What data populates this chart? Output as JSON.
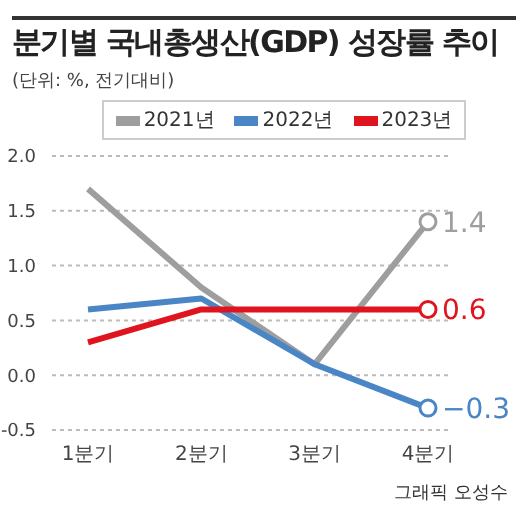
{
  "chart_data": {
    "type": "line",
    "title": "분기별 국내총생산(GDP) 성장률 추이",
    "subtitle": "(단위: %, 전기대비)",
    "categories": [
      "1분기",
      "2분기",
      "3분기",
      "4분기"
    ],
    "series": [
      {
        "name": "2021년",
        "color": "#9e9e9e",
        "values": [
          1.7,
          0.8,
          0.1,
          1.4
        ],
        "value_labels": [
          null,
          null,
          null,
          "1.4"
        ]
      },
      {
        "name": "2022년",
        "color": "#4a86c5",
        "values": [
          0.6,
          0.7,
          0.1,
          -0.3
        ],
        "value_labels": [
          null,
          null,
          null,
          "−0.3"
        ]
      },
      {
        "name": "2023년",
        "color": "#e0141e",
        "values": [
          0.3,
          0.6,
          0.6,
          0.6
        ],
        "value_labels": [
          null,
          null,
          null,
          "0.6"
        ]
      }
    ],
    "ylim": [
      -0.5,
      2.0
    ],
    "yticks": [
      {
        "value": -0.5,
        "label": "-0.5"
      },
      {
        "value": 0,
        "label": "0.0"
      },
      {
        "value": 0.5,
        "label": "0.5"
      },
      {
        "value": 1,
        "label": "1.0"
      },
      {
        "value": 1.5,
        "label": "1.5"
      },
      {
        "value": 2,
        "label": "2.0"
      }
    ],
    "grid": "y",
    "legend": "top",
    "annotations": [
      "그래픽 오성수"
    ]
  }
}
